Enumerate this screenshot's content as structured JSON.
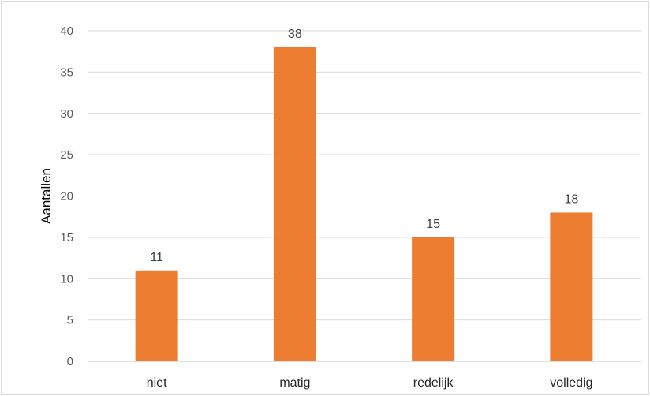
{
  "chart_data": {
    "type": "bar",
    "title": "",
    "xlabel": "",
    "ylabel": "Aantallen",
    "categories": [
      "niet",
      "matig",
      "redelijk",
      "volledig"
    ],
    "values": [
      11,
      38,
      15,
      18
    ],
    "ylim": [
      0,
      40
    ],
    "yticks": [
      "0",
      "5",
      "10",
      "15",
      "20",
      "25",
      "30",
      "35",
      "40"
    ],
    "grid": true,
    "legend": "none",
    "bar_color": "#ED7D31",
    "data_labels": [
      "11",
      "38",
      "15",
      "18"
    ]
  }
}
